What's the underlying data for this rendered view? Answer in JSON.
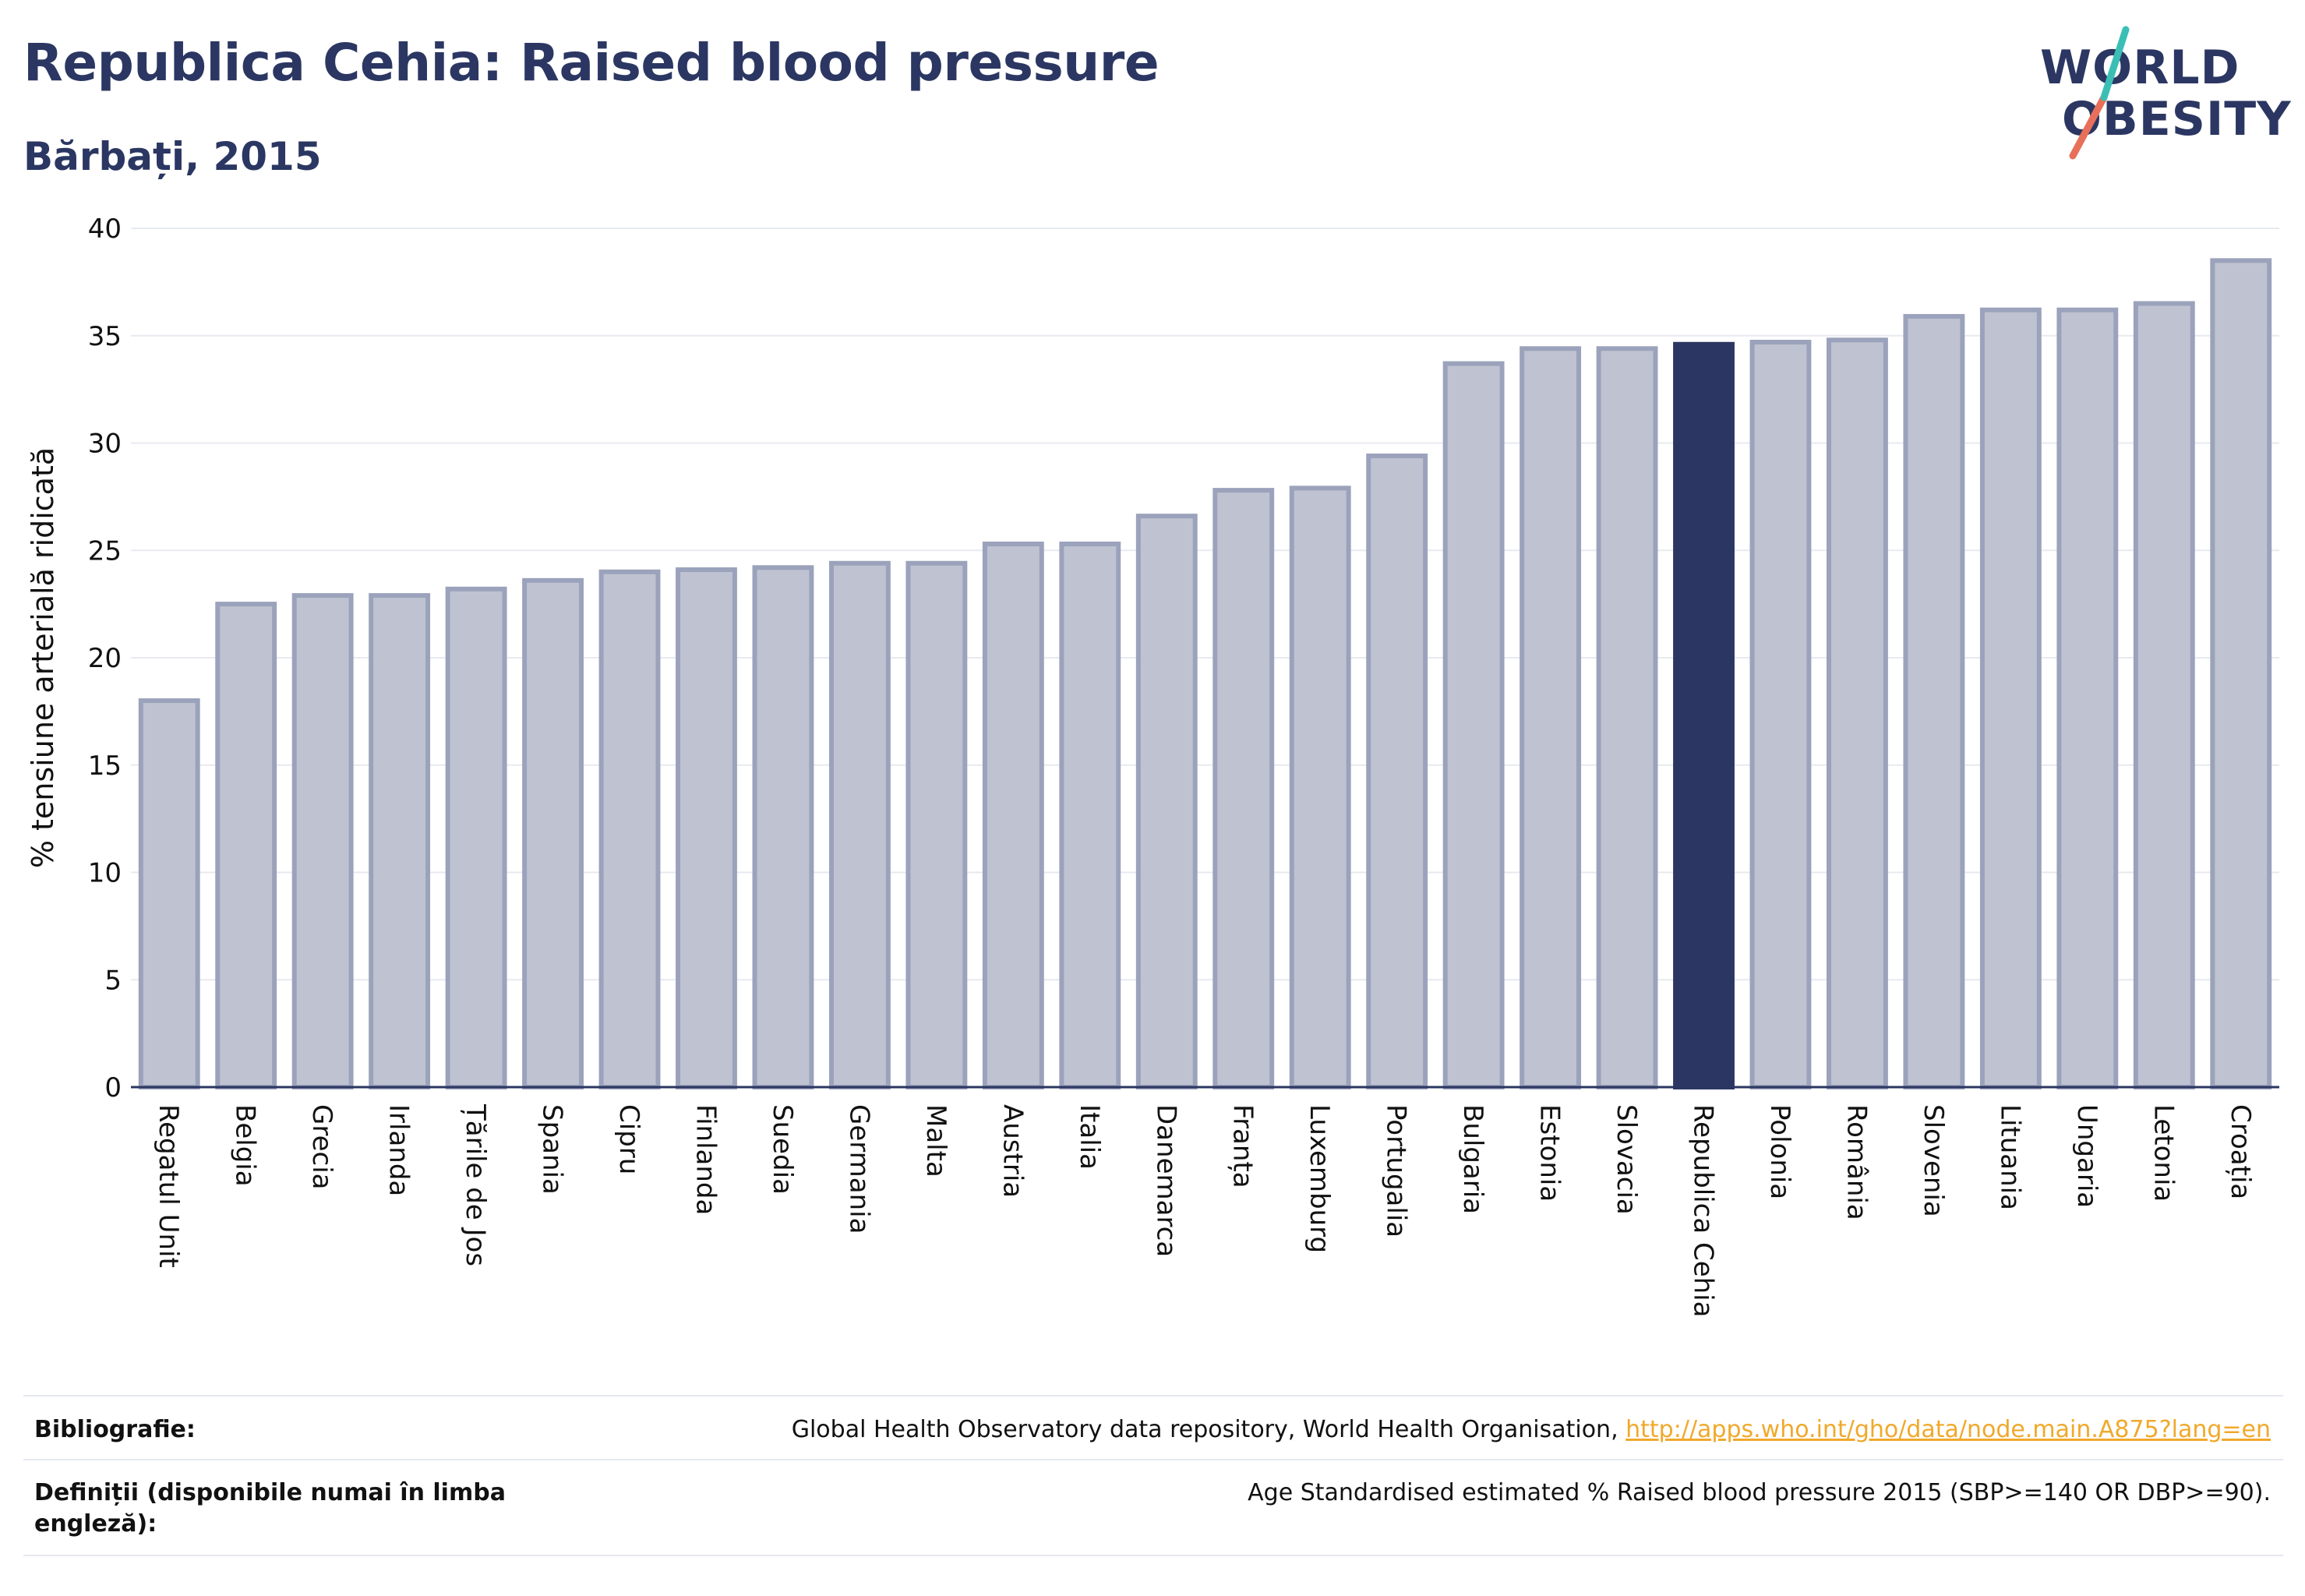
{
  "header": {
    "title": "Republica Cehia: Raised blood pressure",
    "subtitle": "Bărbați, 2015"
  },
  "logo": {
    "line1": "WORLD",
    "line2": "OBESITY"
  },
  "colors": {
    "bar": "#bfc3d1",
    "bar_border": "#9ba2bb",
    "highlight": "#2b3762",
    "grid": "#e8eaf0",
    "axis": "#2b3762"
  },
  "chart_data": {
    "type": "bar",
    "ylabel": "% tensiune arterială ridicată",
    "ylim": [
      0,
      40
    ],
    "yticks": [
      0,
      5,
      10,
      15,
      20,
      25,
      30,
      35,
      40
    ],
    "highlight": "Republica Cehia",
    "categories": [
      "Regatul Unit",
      "Belgia",
      "Grecia",
      "Irlanda",
      "Țările de Jos",
      "Spania",
      "Cipru",
      "Finlanda",
      "Suedia",
      "Germania",
      "Malta",
      "Austria",
      "Italia",
      "Danemarca",
      "Franța",
      "Luxemburg",
      "Portugalia",
      "Bulgaria",
      "Estonia",
      "Slovacia",
      "Republica Cehia",
      "Polonia",
      "România",
      "Slovenia",
      "Lituania",
      "Ungaria",
      "Letonia",
      "Croația"
    ],
    "values": [
      18.0,
      22.5,
      22.9,
      22.9,
      23.2,
      23.6,
      24.0,
      24.1,
      24.2,
      24.4,
      24.4,
      25.3,
      25.3,
      26.6,
      27.8,
      27.9,
      29.4,
      33.7,
      34.4,
      34.4,
      34.6,
      34.7,
      34.8,
      35.9,
      36.2,
      36.2,
      36.5,
      38.5
    ],
    "grid": true
  },
  "footer": {
    "bibliography_label": "Bibliografie:",
    "bibliography_text": "Global Health Observatory data repository, World Health Organisation, ",
    "bibliography_link": "http://apps.who.int/gho/data/node.main.A875?lang=en",
    "definitions_label": "Definiții (disponibile numai în limba engleză):",
    "definitions_text": "Age Standardised estimated % Raised blood pressure 2015 (SBP>=140 OR DBP>=90)."
  }
}
